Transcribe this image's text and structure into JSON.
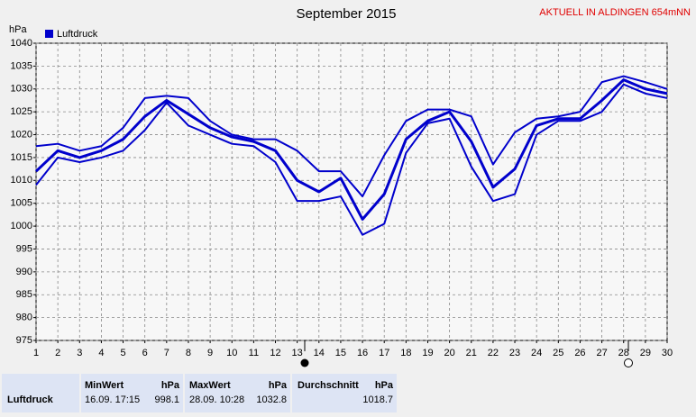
{
  "chart_data": {
    "type": "line",
    "title": "September 2015",
    "subtitle": "AKTUELL IN ALDINGEN 654mNN",
    "y_label": "hPa",
    "x": [
      1,
      2,
      3,
      4,
      5,
      6,
      7,
      8,
      9,
      10,
      11,
      12,
      13,
      14,
      15,
      16,
      17,
      18,
      19,
      20,
      21,
      22,
      23,
      24,
      25,
      26,
      27,
      28,
      29,
      30
    ],
    "xlim": [
      1,
      30
    ],
    "xticks": [
      1,
      2,
      3,
      4,
      5,
      6,
      7,
      8,
      9,
      10,
      11,
      12,
      13,
      14,
      15,
      16,
      17,
      18,
      19,
      20,
      21,
      22,
      23,
      24,
      25,
      26,
      27,
      28,
      29,
      30
    ],
    "ylim": [
      975,
      1040
    ],
    "yticks": [
      975,
      980,
      985,
      990,
      995,
      1000,
      1005,
      1010,
      1015,
      1020,
      1025,
      1030,
      1035,
      1040
    ],
    "grid": true,
    "legend": "top-left",
    "series": [
      {
        "color": "#0000cc",
        "values": [
          1017.5,
          1018,
          1016.5,
          1017.5,
          1021.5,
          1028,
          1028.5,
          1028,
          1023,
          1020,
          1019,
          1019,
          1016.5,
          1012,
          1012,
          1006.5,
          1015.5,
          1023,
          1025.5,
          1025.5,
          1024,
          1013.5,
          1020.5,
          1023.5,
          1024,
          1025,
          1031.5,
          1032.8,
          1031.5,
          1030
        ]
      },
      {
        "name": "Luftdruck",
        "color": "#0000cc",
        "values": [
          1012,
          1016.5,
          1015,
          1016.5,
          1019,
          1024,
          1027.5,
          1024.5,
          1021.5,
          1019.5,
          1018.5,
          1016.5,
          1010,
          1007.5,
          1010.5,
          1001.5,
          1007,
          1019,
          1023,
          1025,
          1018.5,
          1008.5,
          1012.5,
          1022,
          1023.5,
          1023.5,
          1027.5,
          1032,
          1030,
          1029
        ]
      },
      {
        "color": "#0000cc",
        "values": [
          1009,
          1015,
          1014,
          1015,
          1016.5,
          1021,
          1027,
          1022,
          1020,
          1018,
          1017.5,
          1014,
          1005.5,
          1005.5,
          1006.5,
          998.1,
          1000.5,
          1016,
          1022.5,
          1023.5,
          1013,
          1005.5,
          1007,
          1020,
          1023,
          1023,
          1025,
          1031,
          1029,
          1028
        ]
      }
    ]
  },
  "table": {
    "columns": [
      {
        "label": "MinWert",
        "unit": "hPa"
      },
      {
        "label": "MaxWert",
        "unit": "hPa"
      },
      {
        "label": "Durchschnitt",
        "unit": "hPa"
      }
    ],
    "rows": [
      {
        "label": "Luftdruck",
        "cells": [
          {
            "time": "16.09. 17:15",
            "value": 998.1
          },
          {
            "time": "28.09. 10:28",
            "value": 1032.8
          },
          {
            "value": 1018.7
          }
        ]
      }
    ]
  }
}
